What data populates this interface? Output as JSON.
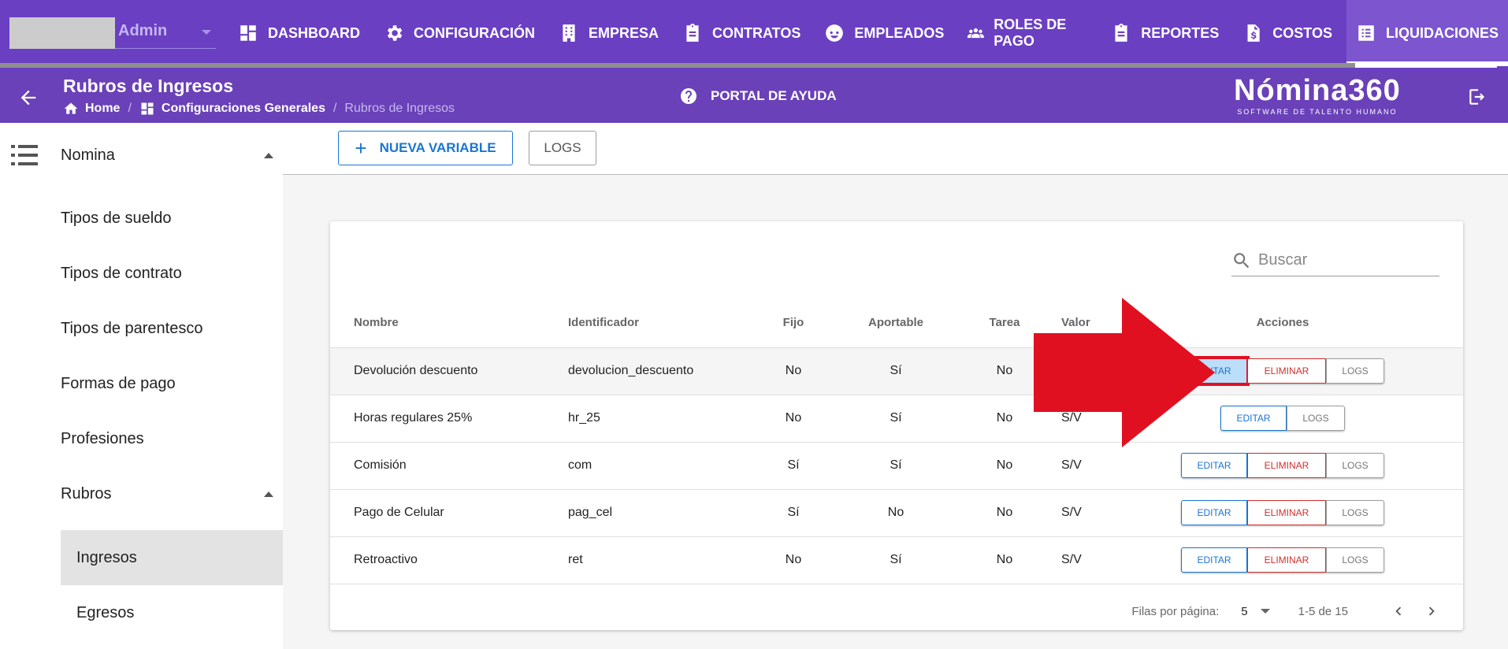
{
  "user": {
    "name": "Admin"
  },
  "nav": [
    {
      "label": "DASHBOARD",
      "icon": "dashboard-icon"
    },
    {
      "label": "CONFIGURACIÓN",
      "icon": "gear-icon"
    },
    {
      "label": "EMPRESA",
      "icon": "building-icon"
    },
    {
      "label": "CONTRATOS",
      "icon": "clipboard-icon"
    },
    {
      "label": "EMPLEADOS",
      "icon": "face-icon"
    },
    {
      "label": "ROLES DE PAGO",
      "icon": "people-icon"
    },
    {
      "label": "REPORTES",
      "icon": "clipboard-icon"
    },
    {
      "label": "COSTOS",
      "icon": "invoice-dollar-icon"
    },
    {
      "label": "LIQUIDACIONES",
      "icon": "list-icon"
    }
  ],
  "header": {
    "title": "Rubros de Ingresos",
    "breadcrumb": [
      "Home",
      "Configuraciones Generales",
      "Rubros de Ingresos"
    ],
    "help": "PORTAL DE AYUDA",
    "brand": "Nómina360",
    "brand_sub": "SOFTWARE DE TALENTO HUMANO"
  },
  "sidebar": {
    "group1": "Nomina",
    "items": [
      "Tipos de sueldo",
      "Tipos de contrato",
      "Tipos de parentesco",
      "Formas de pago",
      "Profesiones"
    ],
    "group2": "Rubros",
    "sub_items": [
      "Ingresos",
      "Egresos"
    ]
  },
  "toolbar": {
    "new_label": "NUEVA VARIABLE",
    "logs_label": "LOGS"
  },
  "search": {
    "placeholder": "Buscar"
  },
  "table": {
    "headers": [
      "Nombre",
      "Identificador",
      "Fijo",
      "Aportable",
      "Tarea",
      "Valor",
      "Acciones"
    ],
    "rows": [
      {
        "nombre": "Devolución descuento",
        "identificador": "devolucion_descuento",
        "fijo": "No",
        "aportable": "Sí",
        "tarea": "No",
        "valor": ""
      },
      {
        "nombre": "Horas regulares 25%",
        "identificador": "hr_25",
        "fijo": "No",
        "aportable": "Sí",
        "tarea": "No",
        "valor": "S/V"
      },
      {
        "nombre": "Comisión",
        "identificador": "com",
        "fijo": "Sí",
        "aportable": "Sí",
        "tarea": "No",
        "valor": "S/V"
      },
      {
        "nombre": "Pago de Celular",
        "identificador": "pag_cel",
        "fijo": "Sí",
        "aportable": "No",
        "tarea": "No",
        "valor": "S/V"
      },
      {
        "nombre": "Retroactivo",
        "identificador": "ret",
        "fijo": "No",
        "aportable": "Sí",
        "tarea": "No",
        "valor": "S/V"
      }
    ],
    "actions": {
      "edit": "EDITAR",
      "delete": "ELIMINAR",
      "logs": "LOGS"
    }
  },
  "pager": {
    "rows_label": "Filas por página:",
    "rows_value": "5",
    "range": "1-5 de 15"
  },
  "colors": {
    "nav_bg": "#6b3fc2",
    "accent": "#1976d2",
    "danger": "#d32f2f",
    "annotation": "#e01020"
  }
}
